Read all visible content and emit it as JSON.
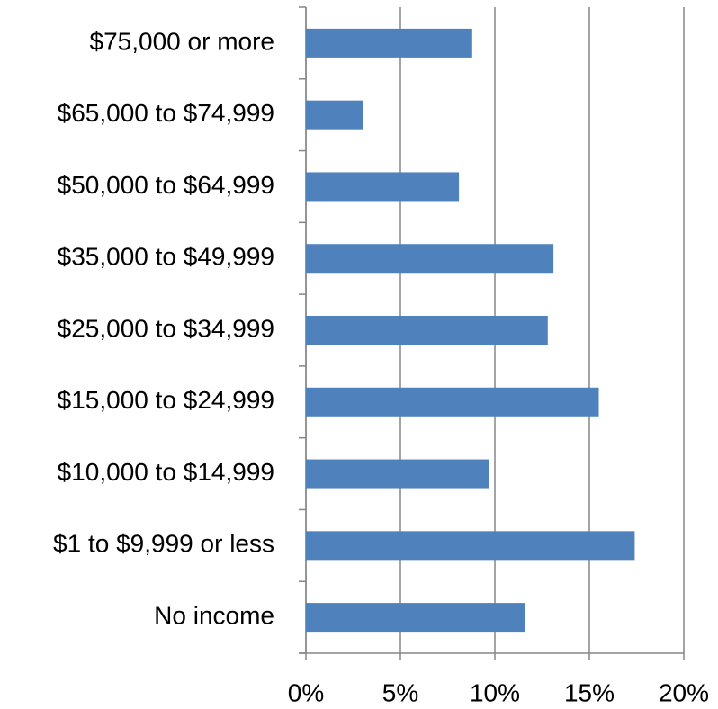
{
  "chart_data": {
    "type": "bar",
    "orientation": "horizontal",
    "categories": [
      "$75,000 or more",
      "$65,000 to $74,999",
      "$50,000 to $64,999",
      "$35,000 to $49,999",
      "$25,000 to $34,999",
      "$15,000 to $24,999",
      "$10,000 to $14,999",
      "$1 to $9,999 or less",
      "No income"
    ],
    "values": [
      8.8,
      3.0,
      8.1,
      13.1,
      12.8,
      15.5,
      9.7,
      17.4,
      11.6
    ],
    "color": "#4f81bd",
    "xlim": [
      0,
      20
    ],
    "xticks": [
      {
        "value": 0,
        "label": "0%"
      },
      {
        "value": 5,
        "label": "5%"
      },
      {
        "value": 10,
        "label": "10%"
      },
      {
        "value": 15,
        "label": "15%"
      },
      {
        "value": 20,
        "label": "20%"
      }
    ],
    "grid": true
  }
}
